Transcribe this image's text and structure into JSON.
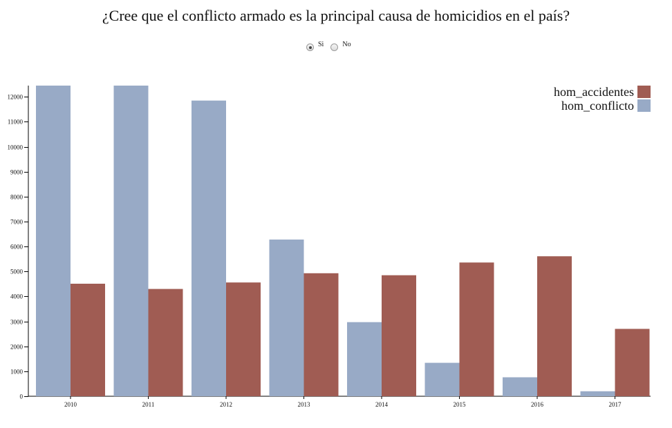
{
  "title": "¿Cree que el conflicto armado es la principal causa de homicidios en el país?",
  "radio": {
    "options": [
      {
        "label": "Si",
        "checked": true
      },
      {
        "label": "No",
        "checked": false
      }
    ]
  },
  "colors": {
    "hom_conflicto": "#98aac6",
    "hom_accidentes": "#a05c53"
  },
  "chart_data": {
    "type": "bar",
    "categories": [
      "2010",
      "2011",
      "2012",
      "2013",
      "2014",
      "2015",
      "2016",
      "2017"
    ],
    "series": [
      {
        "name": "hom_conflicto",
        "values": [
          12450,
          12450,
          11850,
          6280,
          2970,
          1340,
          760,
          200
        ]
      },
      {
        "name": "hom_accidentes",
        "values": [
          4510,
          4300,
          4560,
          4930,
          4850,
          5360,
          5610,
          2700
        ]
      }
    ],
    "yticks": [
      0,
      1000,
      2000,
      3000,
      4000,
      5000,
      6000,
      7000,
      8000,
      9000,
      10000,
      11000,
      12000
    ],
    "ylim": [
      0,
      12450
    ],
    "legend": [
      "hom_accidentes",
      "hom_conflicto"
    ],
    "legend_position": "top-right",
    "grid": false
  }
}
